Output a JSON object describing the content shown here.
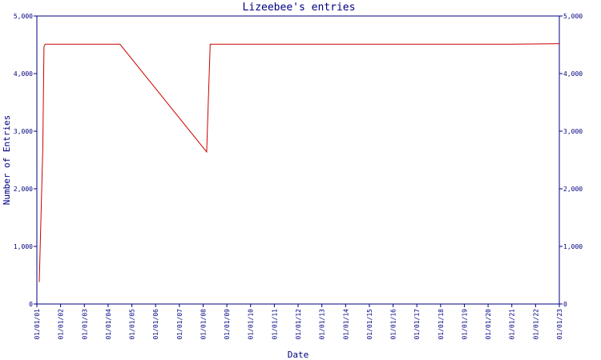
{
  "chart_data": {
    "type": "line",
    "title": "Lizeebee's entries",
    "xlabel": "Date",
    "ylabel": "Number of Entries",
    "ylim": [
      0,
      5000
    ],
    "y_ticks": [
      "0",
      "1,000",
      "2,000",
      "3,000",
      "4,000",
      "5,000"
    ],
    "y_tick_values": [
      0,
      1000,
      2000,
      3000,
      4000,
      5000
    ],
    "right_axis": true,
    "x_ticks": [
      "01/01/01",
      "01/01/02",
      "01/01/03",
      "01/01/04",
      "01/01/05",
      "01/01/06",
      "01/01/07",
      "01/01/08",
      "01/01/09",
      "01/01/10",
      "01/01/11",
      "01/01/12",
      "01/01/13",
      "01/01/14",
      "01/01/15",
      "01/01/16",
      "01/01/17",
      "01/01/18",
      "01/01/19",
      "01/01/20",
      "01/01/21",
      "01/01/22",
      "01/01/23"
    ],
    "xlim": [
      2001.0,
      2023.0
    ],
    "grid": false,
    "series": [
      {
        "color": "#cc0000",
        "x": [
          2001.1,
          2001.25,
          2001.3,
          2001.35,
          2004.5,
          2008.15,
          2008.3,
          2021.0,
          2023.0
        ],
        "values": [
          380,
          2700,
          4470,
          4510,
          4510,
          2640,
          4510,
          4510,
          4520
        ]
      }
    ]
  },
  "colors": {
    "axis": "#000080",
    "line": "#cc0000",
    "background": "#ffffff"
  }
}
